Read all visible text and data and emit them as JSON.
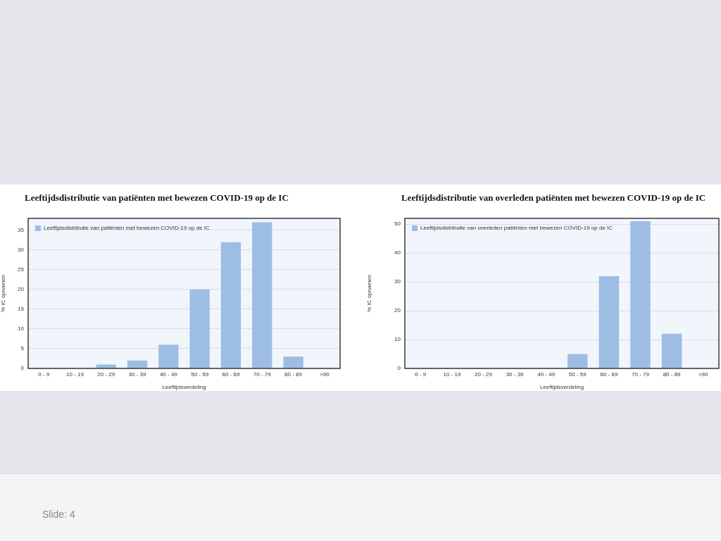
{
  "chart_data": [
    {
      "type": "bar",
      "title": "Leeftijdsdistributie van patiënten met bewezen COVID-19 op de IC",
      "xlabel": "Leeftijdsverdeling",
      "ylabel": "% IC opnamen",
      "categories": [
        "0 - 9",
        "10 - 19",
        "20 - 29",
        "30 - 39",
        "40 - 49",
        "50 - 59",
        "60 - 69",
        "70 - 79",
        "80 - 89",
        ">90"
      ],
      "series": [
        {
          "name": "Leeftijdsdistributie van patiënten met bewezen COVID-19 op de IC",
          "color": "#9dbde5",
          "values": [
            0,
            0,
            1,
            2,
            6,
            20,
            32,
            37,
            3,
            0
          ]
        }
      ],
      "ylim": [
        0,
        38
      ],
      "yticks": [
        0,
        5,
        10,
        15,
        20,
        25,
        30,
        35
      ],
      "grid": "y",
      "legend": "top left",
      "annotations": [
        "Slide: 4"
      ]
    },
    {
      "type": "bar",
      "title": "Leeftijdsdistributie van overleden patiënten met bewezen COVID-19 op de IC",
      "xlabel": "Leeftijdsverdeling",
      "ylabel": "% IC opnamen",
      "categories": [
        "0 - 9",
        "10 - 19",
        "20 - 29",
        "30 - 39",
        "40 - 49",
        "50 - 59",
        "60 - 69",
        "70 - 79",
        "80 - 89",
        ">90"
      ],
      "series": [
        {
          "name": "Leeftijdsdistributie van overleden patiënten met bewezen COVID-19 op de IC",
          "color": "#9dbde5",
          "values": [
            0,
            0,
            0,
            0,
            0,
            5,
            32,
            51,
            12,
            0
          ]
        }
      ],
      "ylim": [
        0,
        52
      ],
      "yticks": [
        0,
        10,
        20,
        30,
        40,
        50
      ],
      "grid": "y",
      "legend": "top left"
    }
  ]
}
